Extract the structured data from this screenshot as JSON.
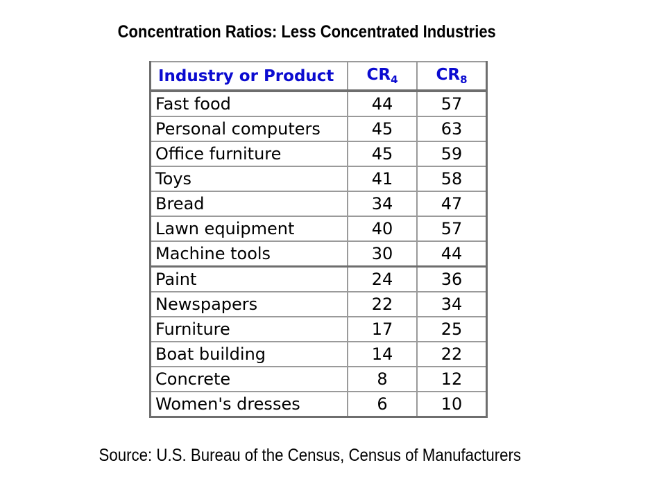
{
  "title": "Concentration Ratios: Less Concentrated Industries",
  "source": "Source: U.S. Bureau of the Census, Census of Manufacturers",
  "chart_data": {
    "type": "table",
    "title": "Concentration Ratios: Less Concentrated Industries",
    "columns": [
      "Industry or Product",
      "CR4",
      "CR8"
    ],
    "header": {
      "industry": "Industry or Product",
      "cr4_base": "CR",
      "cr4_sub": "4",
      "cr8_base": "CR",
      "cr8_sub": "8"
    },
    "rows": [
      {
        "industry": "Fast food",
        "cr4": 44,
        "cr8": 57
      },
      {
        "industry": "Personal computers",
        "cr4": 45,
        "cr8": 63
      },
      {
        "industry": "Office furniture",
        "cr4": 45,
        "cr8": 59
      },
      {
        "industry": "Toys",
        "cr4": 41,
        "cr8": 58
      },
      {
        "industry": "Bread",
        "cr4": 34,
        "cr8": 47
      },
      {
        "industry": "Lawn equipment",
        "cr4": 40,
        "cr8": 57
      },
      {
        "industry": "Machine tools",
        "cr4": 30,
        "cr8": 44
      },
      {
        "industry": "Paint",
        "cr4": 24,
        "cr8": 36
      },
      {
        "industry": "Newspapers",
        "cr4": 22,
        "cr8": 34
      },
      {
        "industry": "Furniture",
        "cr4": 17,
        "cr8": 25
      },
      {
        "industry": "Boat building",
        "cr4": 14,
        "cr8": 22
      },
      {
        "industry": "Concrete",
        "cr4": 8,
        "cr8": 12
      },
      {
        "industry": "Women's dresses",
        "cr4": 6,
        "cr8": 10
      }
    ]
  }
}
